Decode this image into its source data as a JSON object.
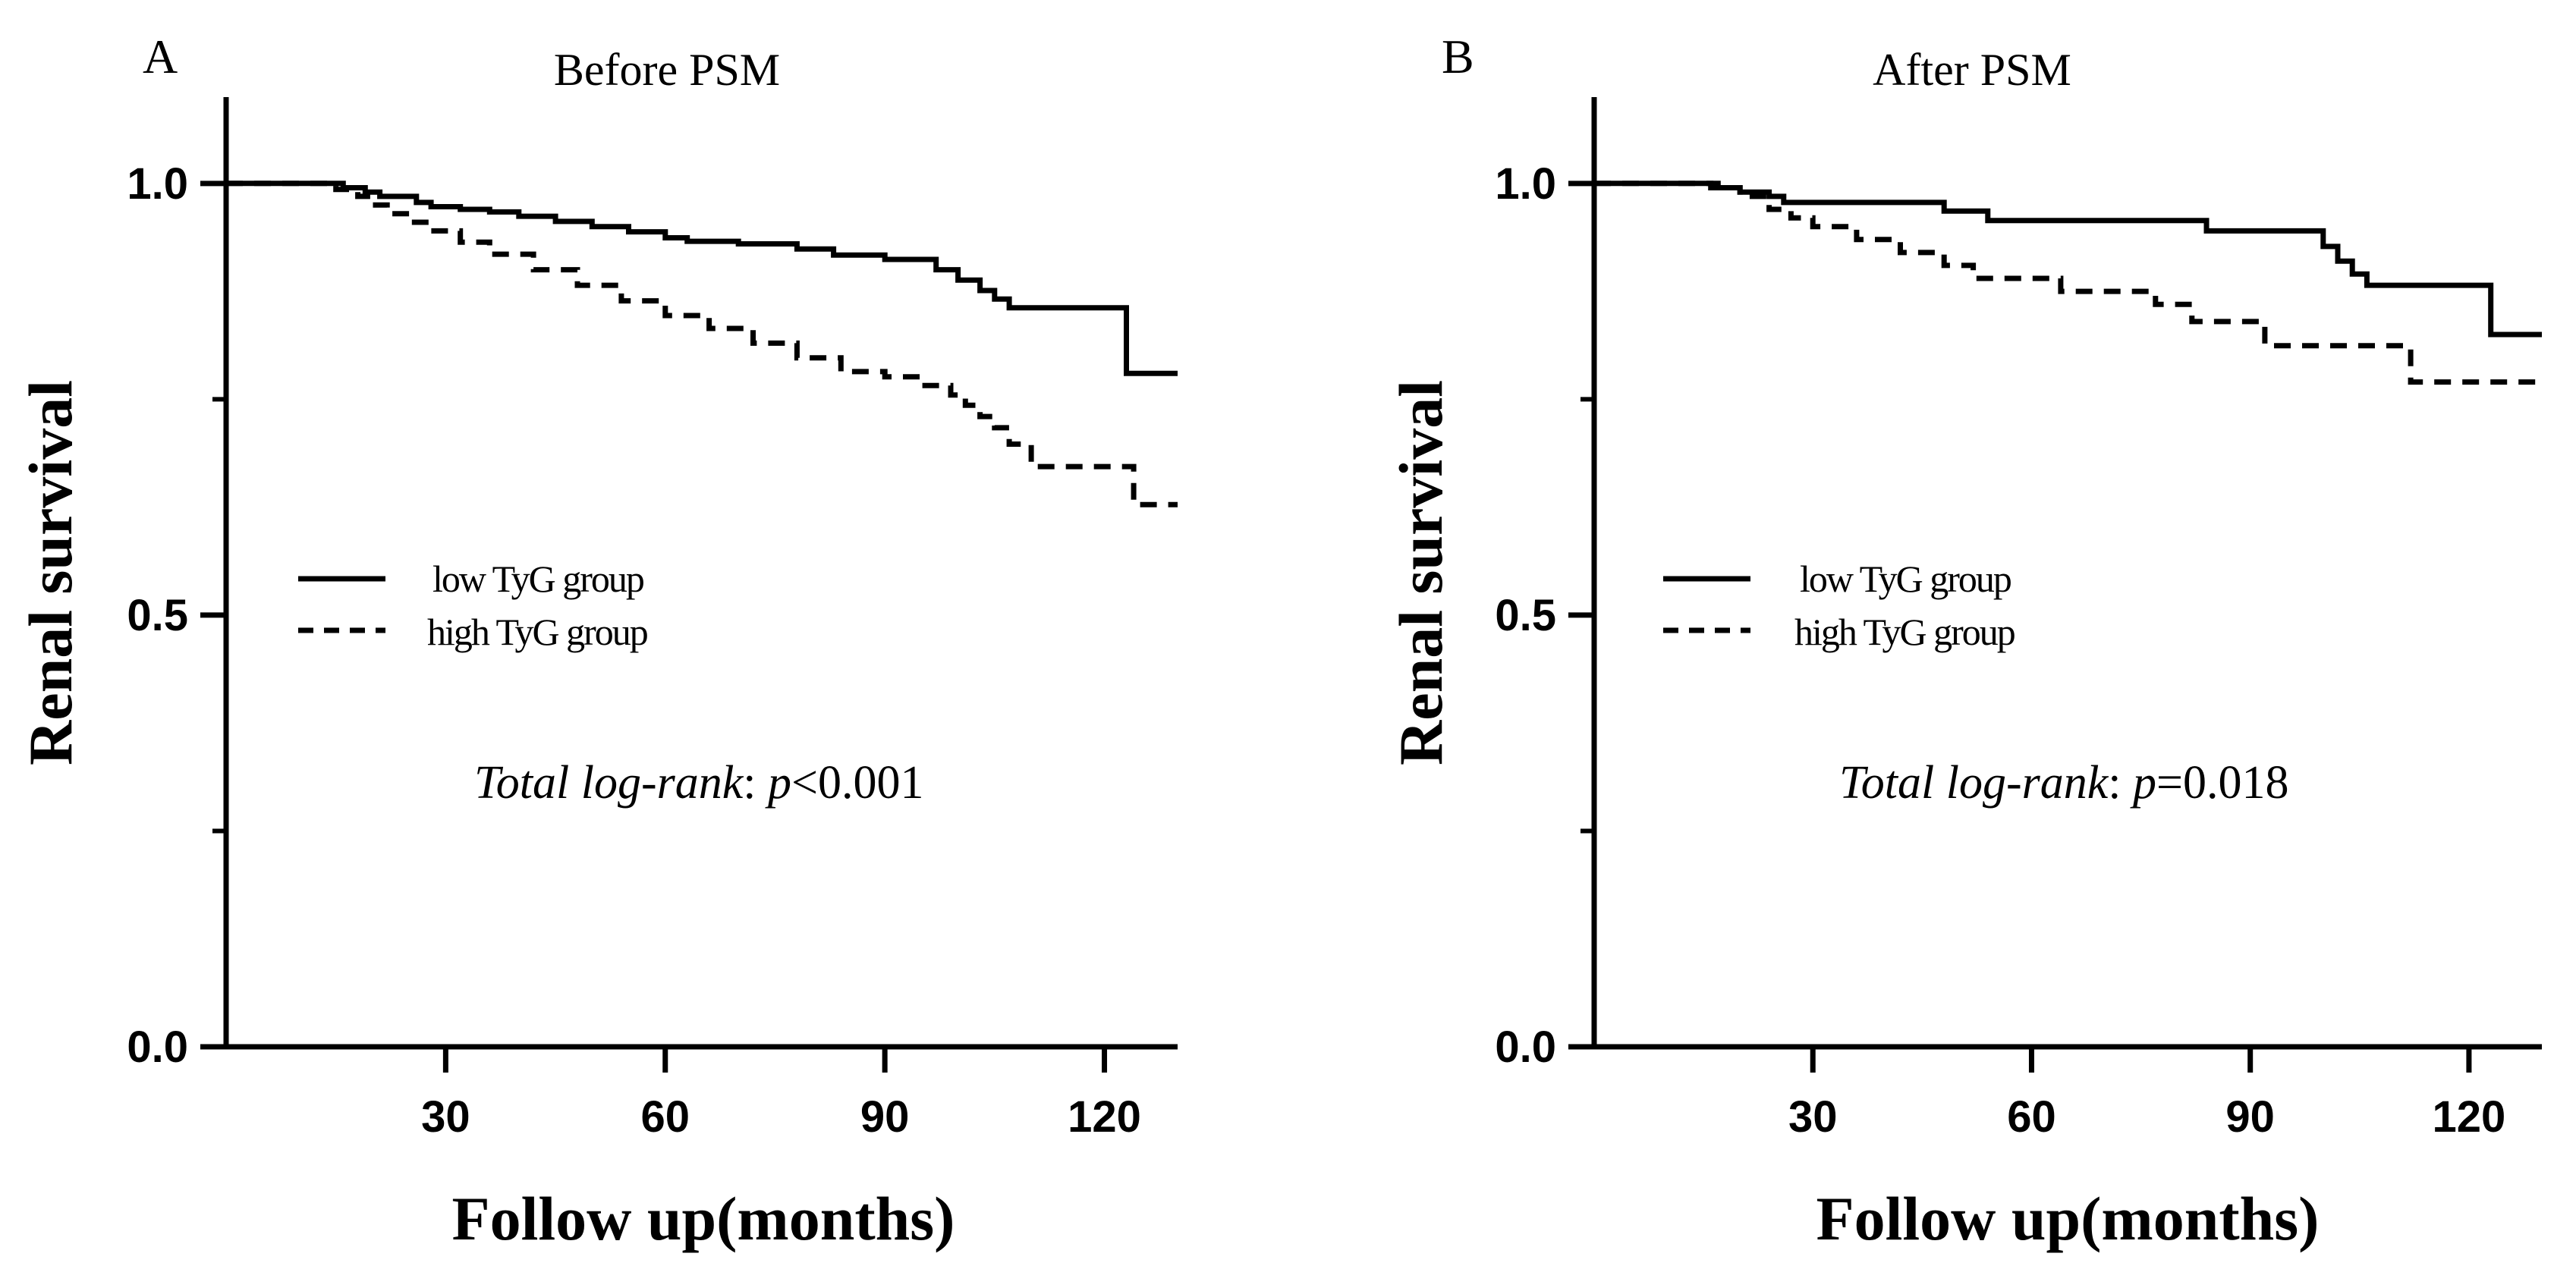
{
  "chart_data": [
    {
      "type": "line",
      "panel": "A",
      "title": "Before PSM",
      "xlabel": "Follow up(months)",
      "ylabel": "Renal survival",
      "xlim": [
        0,
        130
      ],
      "ylim": [
        0,
        1.1
      ],
      "xticks": [
        30,
        60,
        90,
        120
      ],
      "xtick_labels": [
        "30",
        "60",
        "90",
        "120"
      ],
      "yticks": [
        0,
        0.5,
        1.0
      ],
      "ytick_labels": [
        "0.0",
        "0.5",
        "1.0"
      ],
      "yminor_ticks": [
        0.25,
        0.75
      ],
      "legend_position": "center-left",
      "annotation": {
        "label": "Total log-rank",
        "sep": ": ",
        "p": "p",
        "value": "<0.001"
      },
      "series": [
        {
          "name": "low TyG group",
          "style": "solid",
          "x": [
            0,
            13,
            16,
            19,
            21,
            26,
            28,
            32,
            36,
            40,
            45,
            50,
            55,
            60,
            63,
            70,
            78,
            83,
            90,
            97,
            100,
            103,
            105,
            107,
            122,
            123,
            130
          ],
          "y": [
            1.0,
            1.0,
            0.995,
            0.99,
            0.985,
            0.978,
            0.973,
            0.97,
            0.967,
            0.962,
            0.956,
            0.95,
            0.944,
            0.937,
            0.933,
            0.93,
            0.924,
            0.917,
            0.912,
            0.9,
            0.888,
            0.876,
            0.866,
            0.856,
            0.856,
            0.78,
            0.78
          ]
        },
        {
          "name": "high TyG group",
          "style": "dashed",
          "x": [
            0,
            13,
            15,
            18,
            20,
            22,
            25,
            28,
            32,
            36,
            42,
            48,
            54,
            60,
            66,
            72,
            78,
            84,
            90,
            95,
            99,
            101,
            103,
            105,
            107,
            110,
            123,
            124,
            130
          ],
          "y": [
            1.0,
            1.0,
            0.993,
            0.985,
            0.975,
            0.965,
            0.955,
            0.945,
            0.932,
            0.918,
            0.9,
            0.882,
            0.864,
            0.847,
            0.832,
            0.815,
            0.798,
            0.782,
            0.776,
            0.766,
            0.755,
            0.743,
            0.73,
            0.717,
            0.698,
            0.672,
            0.672,
            0.628,
            0.628
          ]
        }
      ]
    },
    {
      "type": "line",
      "panel": "B",
      "title": "After PSM",
      "xlabel": "Follow up(months)",
      "ylabel": "Renal survival",
      "xlim": [
        0,
        130
      ],
      "ylim": [
        0,
        1.1
      ],
      "xticks": [
        30,
        60,
        90,
        120
      ],
      "xtick_labels": [
        "30",
        "60",
        "90",
        "120"
      ],
      "yticks": [
        0,
        0.5,
        1.0
      ],
      "ytick_labels": [
        "0.0",
        "0.5",
        "1.0"
      ],
      "yminor_ticks": [
        0.25,
        0.75
      ],
      "legend_position": "center-left",
      "annotation": {
        "label": "Total log-rank",
        "sep": ": ",
        "p": "p",
        "value": "=0.018"
      },
      "series": [
        {
          "name": "low TyG group",
          "style": "solid",
          "x": [
            0,
            13,
            17,
            20,
            24,
            26,
            48,
            54,
            84,
            100,
            102,
            104,
            106,
            122,
            123,
            130
          ],
          "y": [
            1.0,
            1.0,
            0.995,
            0.99,
            0.985,
            0.978,
            0.968,
            0.957,
            0.945,
            0.927,
            0.91,
            0.895,
            0.882,
            0.882,
            0.825,
            0.825
          ]
        },
        {
          "name": "high TyG group",
          "style": "dashed",
          "x": [
            0,
            16,
            20,
            24,
            27,
            30,
            36,
            42,
            48,
            52,
            64,
            77,
            82,
            92,
            111,
            112,
            130
          ],
          "y": [
            1.0,
            0.995,
            0.985,
            0.97,
            0.96,
            0.95,
            0.935,
            0.92,
            0.905,
            0.89,
            0.875,
            0.86,
            0.84,
            0.812,
            0.812,
            0.77,
            0.77
          ]
        }
      ]
    }
  ]
}
